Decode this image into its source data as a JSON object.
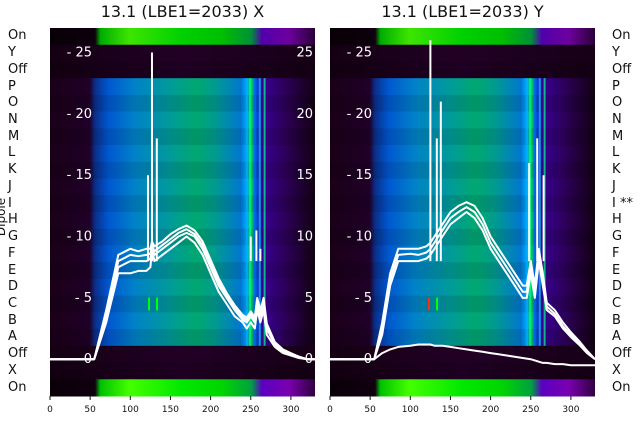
{
  "chart_data": [
    {
      "type": "heatmap",
      "title": "13.1 (LBE1=2033) X",
      "row_labels": [
        "On",
        "Y",
        "Off",
        "P",
        "O",
        "N",
        "M",
        "L",
        "K",
        "J",
        "I",
        "H",
        "G",
        "F",
        "E",
        "D",
        "C",
        "B",
        "A",
        "Off",
        "X",
        "On"
      ],
      "x_ticks": [
        "0",
        "50",
        "100",
        "150",
        "200",
        "250",
        "300"
      ],
      "x_range": [
        0,
        330
      ],
      "overlay_ticks": [
        "0",
        "5",
        "10",
        "15",
        "20",
        "25"
      ],
      "overlay_range": [
        -3,
        27
      ],
      "colormap": "nipy_spectral",
      "lines": {
        "x": [
          0,
          55,
          70,
          85,
          100,
          110,
          120,
          125,
          127,
          130,
          140,
          150,
          160,
          170,
          180,
          190,
          200,
          210,
          220,
          230,
          240,
          245,
          250,
          255,
          258,
          262,
          266,
          270,
          280,
          290,
          300,
          310,
          320,
          330
        ],
        "series": [
          {
            "values": [
              0,
              0,
              3,
              7,
              7,
              7.2,
              7.2,
              7.5,
              9,
              8,
              8.5,
              9,
              9.5,
              10,
              9.5,
              8.5,
              7,
              5.5,
              4.5,
              3.5,
              3,
              2.5,
              3,
              2.5,
              4,
              3,
              4,
              2,
              1,
              0.5,
              0.3,
              0.1,
              0,
              0
            ]
          },
          {
            "values": [
              0,
              0,
              3,
              7.5,
              8,
              8,
              8,
              8.2,
              9,
              8.5,
              9,
              9.5,
              10,
              10.3,
              10,
              9,
              7.5,
              6,
              5,
              4,
              3.2,
              3,
              3.5,
              3,
              4.5,
              3.5,
              4.5,
              2.5,
              1.2,
              0.6,
              0.4,
              0.2,
              0,
              0
            ]
          },
          {
            "values": [
              0,
              0,
              3.5,
              8,
              8.5,
              8.4,
              8.5,
              8.6,
              9.3,
              8.8,
              9.3,
              9.8,
              10.3,
              10.6,
              10.2,
              9.3,
              7.8,
              6.3,
              5.2,
              4.2,
              3.4,
              3.2,
              3.7,
              3.2,
              4.8,
              3.8,
              4.8,
              2.7,
              1.3,
              0.7,
              0.4,
              0.2,
              0,
              0
            ]
          },
          {
            "values": [
              0,
              0,
              4,
              8.5,
              9,
              8.8,
              9,
              9,
              9.6,
              9.2,
              9.6,
              10.2,
              10.6,
              10.9,
              10.5,
              9.6,
              8.1,
              6.6,
              5.4,
              4.4,
              3.6,
              3.4,
              3.9,
              3.4,
              5,
              4,
              5,
              2.9,
              1.4,
              0.8,
              0.5,
              0.2,
              0,
              0
            ]
          }
        ],
        "spikes": [
          {
            "x": 127,
            "y": 25
          },
          {
            "x": 122,
            "y": 15
          },
          {
            "x": 133,
            "y": 18
          },
          {
            "x": 250,
            "y": 10
          },
          {
            "x": 257,
            "y": 10.5
          },
          {
            "x": 262,
            "y": 9
          }
        ]
      }
    },
    {
      "type": "heatmap",
      "title": "13.1 (LBE1=2033) Y",
      "row_labels": [
        "On",
        "Y",
        "Off",
        "P",
        "O",
        "N",
        "M",
        "L",
        "K",
        "J",
        "I **",
        "H",
        "G",
        "F",
        "E",
        "D",
        "C",
        "B",
        "A",
        "Off",
        "X",
        "On"
      ],
      "x_ticks": [
        "0",
        "50",
        "100",
        "150",
        "200",
        "250",
        "300"
      ],
      "x_range": [
        0,
        330
      ],
      "overlay_ticks": [
        "0",
        "5",
        "10",
        "15",
        "20",
        "25"
      ],
      "overlay_range": [
        -3,
        27
      ],
      "colormap": "nipy_spectral",
      "lines": {
        "x": [
          0,
          55,
          65,
          75,
          85,
          100,
          110,
          120,
          125,
          130,
          140,
          150,
          160,
          170,
          180,
          190,
          200,
          210,
          220,
          230,
          240,
          245,
          250,
          255,
          260,
          265,
          270,
          280,
          290,
          300,
          310,
          320,
          330
        ],
        "series": [
          {
            "values": [
              0,
              0,
              2,
              6,
              8,
              8,
              8,
              8.2,
              8.5,
              9,
              10,
              11,
              11.5,
              12,
              11.5,
              10.5,
              9,
              8,
              7,
              6,
              5,
              5,
              7,
              5,
              8,
              6,
              4,
              3.5,
              2.5,
              1.8,
              1.2,
              0.5,
              0
            ]
          },
          {
            "values": [
              0,
              0,
              2.5,
              6.5,
              8.5,
              8.6,
              8.5,
              8.7,
              9,
              9.5,
              10.5,
              11.5,
              12,
              12.4,
              12,
              11,
              9.5,
              8.5,
              7.5,
              6.5,
              5.5,
              5.5,
              7.5,
              5.5,
              8.5,
              6.5,
              4.3,
              3.7,
              2.7,
              2,
              1.3,
              0.6,
              0
            ]
          },
          {
            "values": [
              0,
              0,
              3,
              7,
              9,
              9,
              9,
              9.2,
              9.5,
              10,
              11,
              12,
              12.5,
              12.8,
              12.5,
              11.5,
              10,
              9,
              8,
              7,
              6,
              6,
              8,
              6,
              9,
              7,
              4.6,
              4,
              3,
              2.2,
              1.5,
              0.7,
              0
            ]
          },
          {
            "values": [
              0,
              0,
              0.5,
              0.8,
              1,
              1.1,
              1.2,
              1.2,
              1.2,
              1.1,
              1.1,
              1,
              0.9,
              0.8,
              0.7,
              0.6,
              0.5,
              0.4,
              0.3,
              0.2,
              0.1,
              0.05,
              0,
              -0.1,
              -0.2,
              -0.3,
              -0.3,
              -0.4,
              -0.4,
              -0.5,
              -0.5,
              -0.5,
              -0.5
            ]
          }
        ],
        "spikes": [
          {
            "x": 125,
            "y": 26
          },
          {
            "x": 133,
            "y": 18
          },
          {
            "x": 138,
            "y": 21
          },
          {
            "x": 248,
            "y": 16
          },
          {
            "x": 258,
            "y": 18
          },
          {
            "x": 266,
            "y": 15
          }
        ]
      }
    }
  ],
  "overlay_ylabel": "Dipole",
  "colors": {
    "line": "#ffffff",
    "text": "#111111",
    "tick_text": "#ffffff"
  }
}
